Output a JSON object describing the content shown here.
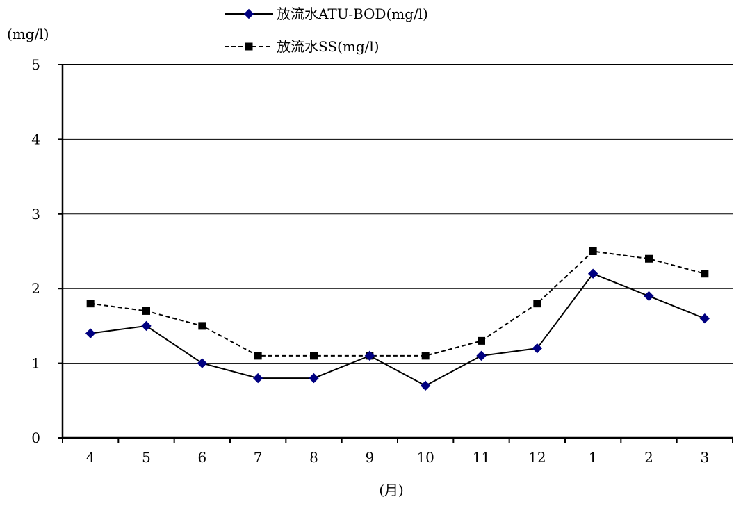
{
  "chart_data": {
    "type": "line",
    "categories": [
      "4",
      "5",
      "6",
      "7",
      "8",
      "9",
      "10",
      "11",
      "12",
      "1",
      "2",
      "3"
    ],
    "series": [
      {
        "name": "放流水ATU-BOD(mg/l)",
        "values": [
          1.4,
          1.5,
          1.0,
          0.8,
          0.8,
          1.1,
          0.7,
          1.1,
          1.2,
          2.2,
          1.9,
          1.6
        ],
        "color": "#000080",
        "line_color": "#000000",
        "line_style": "solid",
        "marker": "diamond"
      },
      {
        "name": "放流水SS(mg/l)",
        "values": [
          1.8,
          1.7,
          1.5,
          1.1,
          1.1,
          1.1,
          1.1,
          1.3,
          1.8,
          2.5,
          2.4,
          2.2
        ],
        "color": "#000000",
        "line_color": "#000000",
        "line_style": "dashed",
        "marker": "square"
      }
    ],
    "ylabel": "(mg/l)",
    "xlabel": "(月)",
    "ylim": [
      0,
      5
    ],
    "yticks": [
      "0",
      "1",
      "2",
      "3",
      "4",
      "5"
    ],
    "grid": true,
    "legend_position": "top"
  }
}
